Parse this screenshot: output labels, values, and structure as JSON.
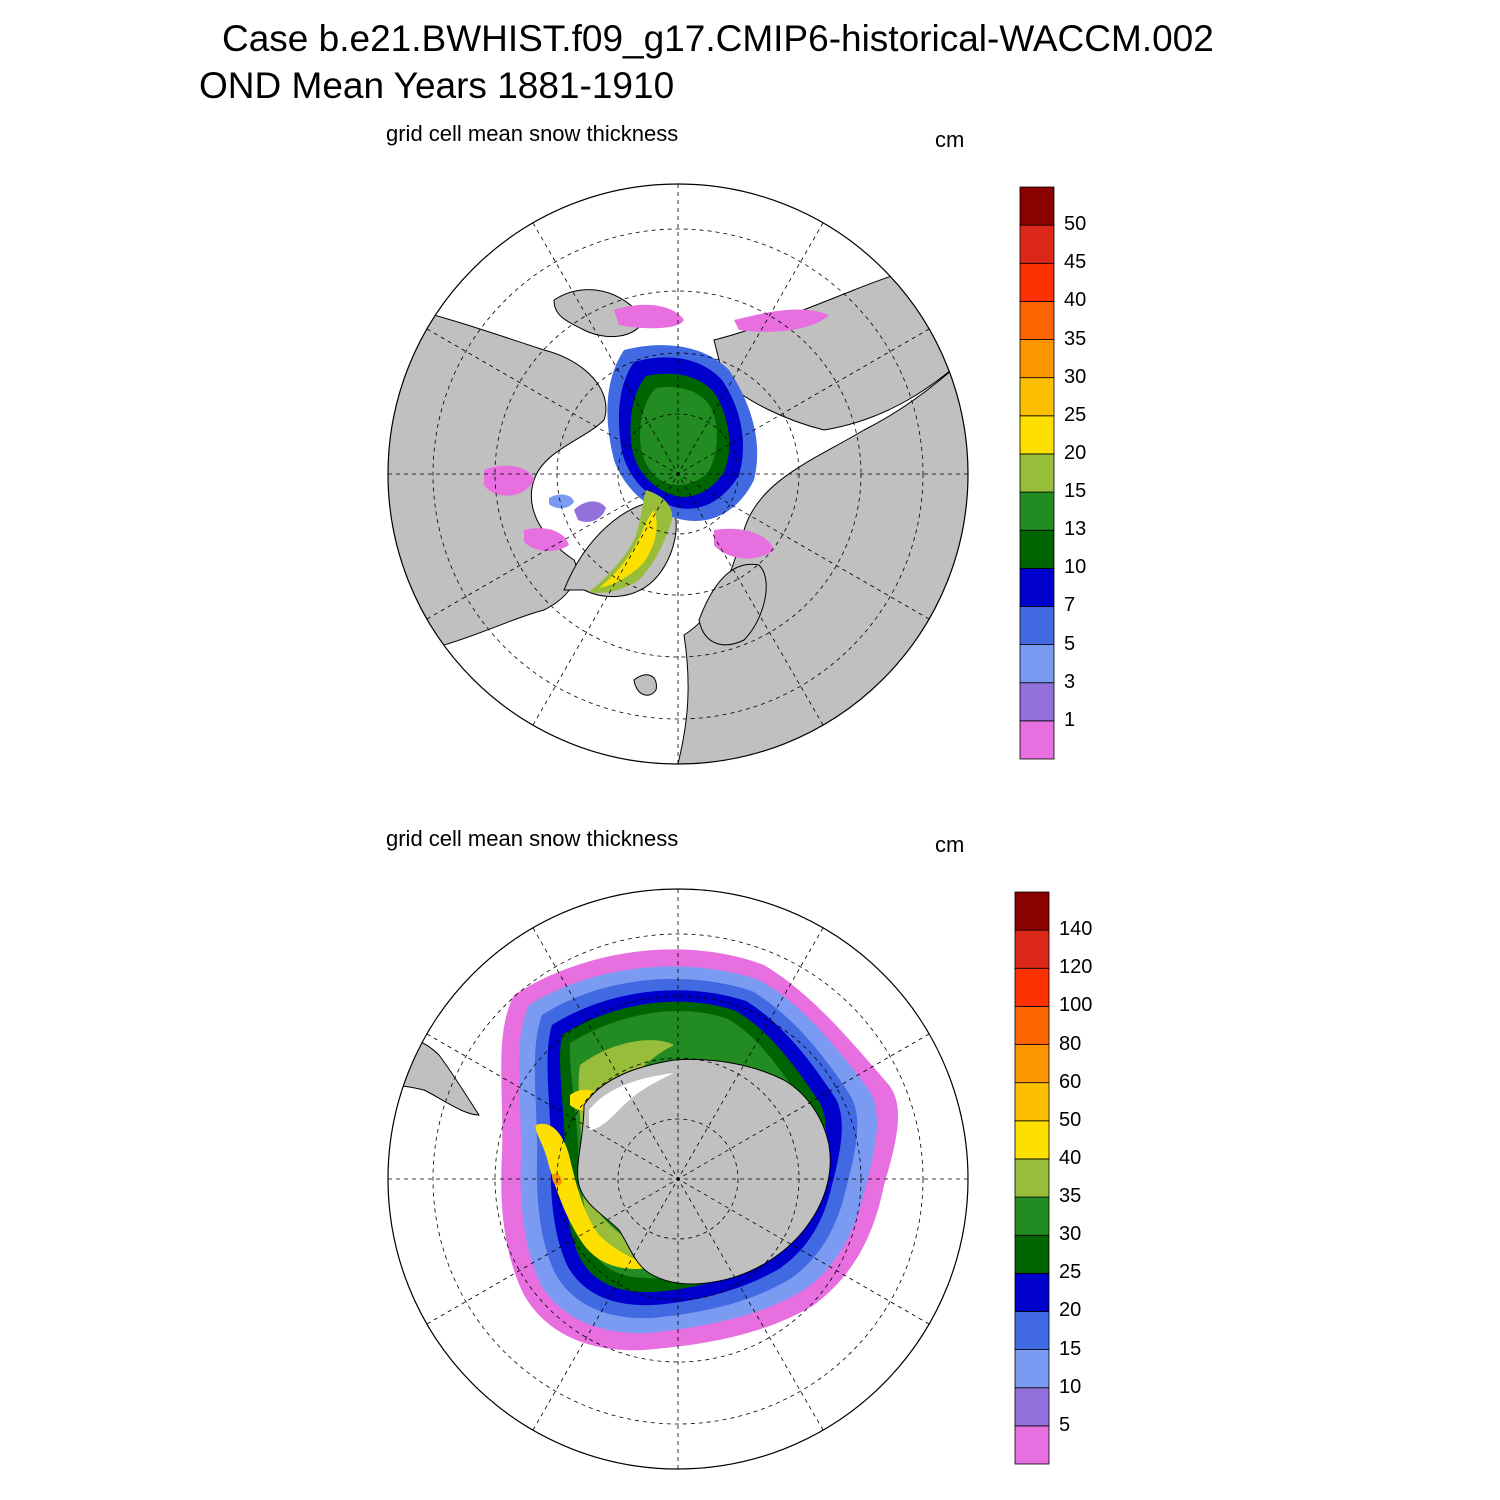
{
  "header": {
    "case_title": "Case b.e21.BWHIST.f09_g17.CMIP6-historical-WACCM.002",
    "mean_title": "OND Mean   Years 1881-1910"
  },
  "colors": {
    "land": "#c0c0c0",
    "coast": "#000000",
    "ocean": "#ffffff",
    "palette": [
      "#e86fe0",
      "#9370db",
      "#7b9bf2",
      "#4169e1",
      "#0000cd",
      "#006400",
      "#228b22",
      "#97bd3a",
      "#fde000",
      "#fcc000",
      "#fc9600",
      "#fc6400",
      "#fc3000",
      "#dc2818",
      "#8b0000"
    ]
  },
  "panels": [
    {
      "id": "arctic",
      "title": "grid cell mean snow thickness",
      "units": "cm",
      "colorbar_labels": [
        "1",
        "3",
        "5",
        "7",
        "10",
        "13",
        "15",
        "20",
        "25",
        "30",
        "35",
        "40",
        "45",
        "50"
      ]
    },
    {
      "id": "antarctic",
      "title": "grid cell mean snow thickness",
      "units": "cm",
      "colorbar_labels": [
        "5",
        "10",
        "15",
        "20",
        "25",
        "30",
        "35",
        "40",
        "50",
        "60",
        "80",
        "100",
        "120",
        "140"
      ]
    }
  ]
}
